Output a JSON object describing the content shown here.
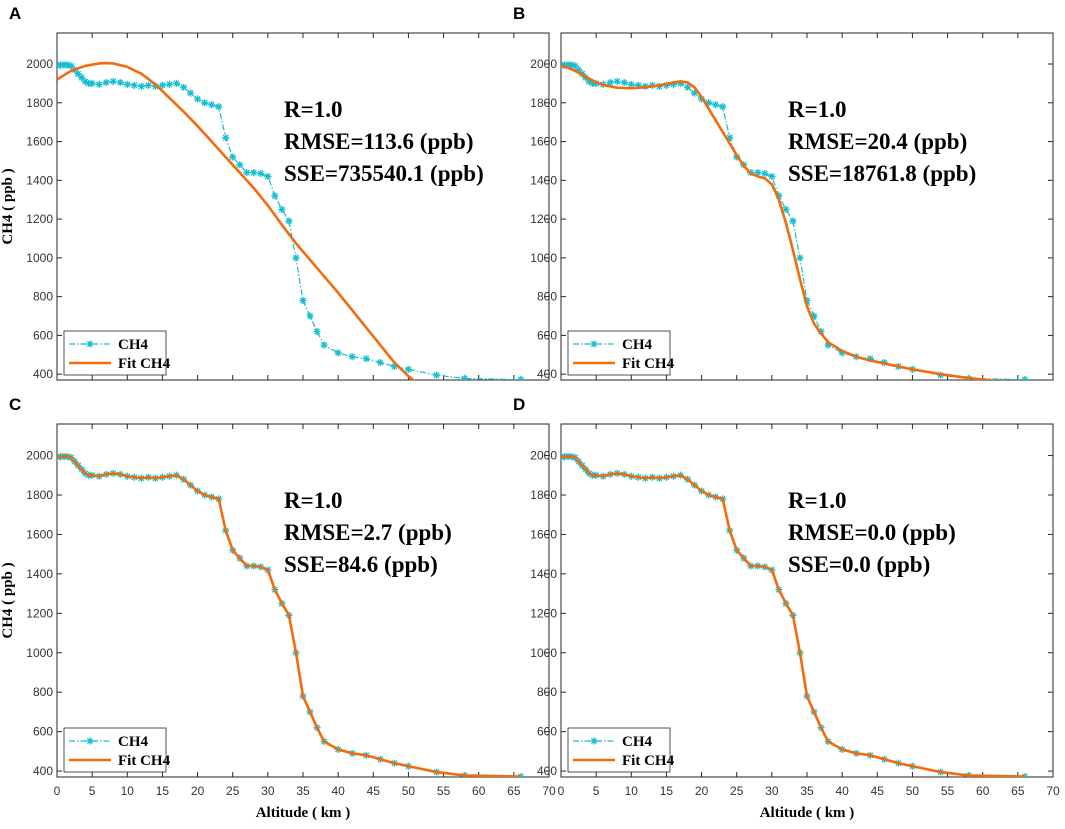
{
  "colors": {
    "ch4": "#17becf",
    "fit": "#f26b0d",
    "axis": "#262626"
  },
  "chart_data": [
    {
      "type": "line",
      "panel_label": "A",
      "xlim": [
        0,
        70
      ],
      "ylim": [
        370,
        2160
      ],
      "xticks": [
        0,
        5,
        10,
        15,
        20,
        25,
        30,
        35,
        40,
        45,
        50,
        55,
        60,
        65,
        70
      ],
      "yticks": [
        400,
        600,
        800,
        1000,
        1200,
        1400,
        1600,
        1800,
        2000
      ],
      "xlabel": "",
      "ylabel": "CH4 ( ppb )",
      "legend": [
        "CH4",
        "Fit CH4"
      ],
      "legend_position": "bottom-left",
      "annotations": [
        "R=1.0",
        "RMSE=113.6 (ppb)",
        "SSE=735540.1 (ppb)"
      ],
      "series": [
        {
          "name": "CH4",
          "x": [
            0,
            0.5,
            1,
            1.5,
            2,
            2.5,
            3,
            3.5,
            4,
            4.5,
            5,
            6,
            7,
            8,
            9,
            10,
            11,
            12,
            13,
            14,
            15,
            16,
            17,
            18,
            19,
            20,
            21,
            22,
            23,
            24,
            25,
            26,
            27,
            28,
            29,
            30,
            31,
            32,
            33,
            34,
            35,
            36,
            37,
            38,
            40,
            42,
            44,
            46,
            48,
            50,
            54,
            58,
            66
          ],
          "y": [
            1990,
            1995,
            1995,
            1995,
            1990,
            1970,
            1950,
            1930,
            1910,
            1900,
            1900,
            1895,
            1905,
            1910,
            1905,
            1895,
            1890,
            1885,
            1890,
            1885,
            1890,
            1895,
            1900,
            1880,
            1850,
            1820,
            1800,
            1790,
            1780,
            1620,
            1520,
            1480,
            1440,
            1440,
            1435,
            1420,
            1320,
            1250,
            1190,
            1000,
            780,
            700,
            620,
            550,
            510,
            490,
            480,
            460,
            440,
            425,
            395,
            378,
            372
          ]
        },
        {
          "name": "Fit CH4",
          "x": [
            0,
            2,
            4,
            6,
            7,
            8,
            10,
            12,
            14,
            16,
            18,
            20,
            22,
            24,
            26,
            28,
            30,
            32,
            34,
            36,
            38,
            40,
            42,
            44,
            46,
            48,
            50,
            51
          ],
          "y": [
            1920,
            1965,
            1990,
            2003,
            2005,
            2003,
            1985,
            1950,
            1895,
            1825,
            1755,
            1680,
            1600,
            1520,
            1440,
            1360,
            1270,
            1170,
            1075,
            990,
            905,
            820,
            730,
            640,
            550,
            460,
            390,
            360
          ]
        }
      ]
    },
    {
      "type": "line",
      "panel_label": "B",
      "xlim": [
        0,
        70
      ],
      "ylim": [
        370,
        2160
      ],
      "xticks": [
        0,
        5,
        10,
        15,
        20,
        25,
        30,
        35,
        40,
        45,
        50,
        55,
        60,
        65,
        70
      ],
      "yticks": [
        400,
        600,
        800,
        1000,
        1200,
        1400,
        1600,
        1800,
        2000
      ],
      "xlabel": "",
      "ylabel": "",
      "legend": [
        "CH4",
        "Fit CH4"
      ],
      "legend_position": "bottom-left",
      "annotations": [
        "R=1.0",
        "RMSE=20.4 (ppb)",
        "SSE=18761.8 (ppb)"
      ],
      "series": [
        {
          "name": "CH4",
          "x": [
            0,
            0.5,
            1,
            1.5,
            2,
            2.5,
            3,
            3.5,
            4,
            4.5,
            5,
            6,
            7,
            8,
            9,
            10,
            11,
            12,
            13,
            14,
            15,
            16,
            17,
            18,
            19,
            20,
            21,
            22,
            23,
            24,
            25,
            26,
            27,
            28,
            29,
            30,
            31,
            32,
            33,
            34,
            35,
            36,
            37,
            38,
            40,
            42,
            44,
            46,
            48,
            50,
            54,
            58,
            66
          ],
          "y": [
            1990,
            1995,
            1995,
            1995,
            1990,
            1970,
            1950,
            1930,
            1910,
            1900,
            1900,
            1895,
            1905,
            1910,
            1905,
            1895,
            1890,
            1885,
            1890,
            1885,
            1890,
            1895,
            1900,
            1880,
            1850,
            1820,
            1800,
            1790,
            1780,
            1620,
            1520,
            1480,
            1440,
            1440,
            1435,
            1420,
            1320,
            1250,
            1190,
            1000,
            780,
            700,
            620,
            550,
            510,
            490,
            480,
            460,
            440,
            425,
            395,
            378,
            372
          ]
        },
        {
          "name": "Fit CH4",
          "x": [
            0,
            1,
            2,
            3,
            4,
            5,
            6,
            8,
            10,
            12,
            14,
            16,
            17,
            18,
            19,
            20,
            21,
            22,
            23,
            24,
            25,
            26,
            27,
            28,
            29,
            30,
            31,
            32,
            33,
            34,
            35,
            36,
            37,
            38,
            40,
            42,
            44,
            46,
            48,
            50,
            54,
            58,
            62,
            64
          ],
          "y": [
            1990,
            1980,
            1965,
            1945,
            1925,
            1905,
            1892,
            1878,
            1875,
            1880,
            1890,
            1905,
            1910,
            1905,
            1880,
            1830,
            1770,
            1710,
            1650,
            1590,
            1530,
            1475,
            1435,
            1420,
            1410,
            1380,
            1300,
            1180,
            1040,
            890,
            750,
            660,
            610,
            565,
            520,
            490,
            470,
            455,
            440,
            425,
            400,
            380,
            365,
            355
          ]
        }
      ]
    },
    {
      "type": "line",
      "panel_label": "C",
      "xlim": [
        0,
        70
      ],
      "ylim": [
        370,
        2160
      ],
      "xticks": [
        0,
        5,
        10,
        15,
        20,
        25,
        30,
        35,
        40,
        45,
        50,
        55,
        60,
        65,
        70
      ],
      "yticks": [
        400,
        600,
        800,
        1000,
        1200,
        1400,
        1600,
        1800,
        2000
      ],
      "xlabel": "Altitude ( km )",
      "ylabel": "CH4 ( ppb )",
      "legend": [
        "CH4",
        "Fit CH4"
      ],
      "legend_position": "bottom-left",
      "annotations": [
        "R=1.0",
        "RMSE=2.7 (ppb)",
        "SSE=84.6 (ppb)"
      ],
      "series": [
        {
          "name": "CH4",
          "x": [
            0,
            0.5,
            1,
            1.5,
            2,
            2.5,
            3,
            3.5,
            4,
            4.5,
            5,
            6,
            7,
            8,
            9,
            10,
            11,
            12,
            13,
            14,
            15,
            16,
            17,
            18,
            19,
            20,
            21,
            22,
            23,
            24,
            25,
            26,
            27,
            28,
            29,
            30,
            31,
            32,
            33,
            34,
            35,
            36,
            37,
            38,
            40,
            42,
            44,
            46,
            48,
            50,
            54,
            58,
            66
          ],
          "y": [
            1990,
            1995,
            1995,
            1995,
            1990,
            1970,
            1950,
            1930,
            1910,
            1900,
            1900,
            1895,
            1905,
            1910,
            1905,
            1895,
            1890,
            1885,
            1890,
            1885,
            1890,
            1895,
            1900,
            1880,
            1850,
            1820,
            1800,
            1790,
            1780,
            1620,
            1520,
            1480,
            1440,
            1440,
            1435,
            1420,
            1320,
            1250,
            1190,
            1000,
            780,
            700,
            620,
            550,
            510,
            490,
            480,
            460,
            440,
            425,
            395,
            378,
            372
          ]
        },
        {
          "name": "Fit CH4",
          "x": [
            0,
            0.5,
            1,
            1.5,
            2,
            2.5,
            3,
            3.5,
            4,
            4.5,
            5,
            6,
            7,
            8,
            9,
            10,
            11,
            12,
            13,
            14,
            15,
            16,
            17,
            18,
            19,
            20,
            21,
            22,
            23,
            24,
            25,
            26,
            27,
            28,
            29,
            30,
            31,
            32,
            33,
            34,
            35,
            36,
            37,
            38,
            40,
            42,
            44,
            46,
            48,
            50,
            54,
            58,
            66
          ],
          "y": [
            1990,
            1995,
            1995,
            1995,
            1990,
            1970,
            1950,
            1930,
            1910,
            1900,
            1900,
            1895,
            1905,
            1910,
            1905,
            1895,
            1890,
            1885,
            1890,
            1885,
            1890,
            1895,
            1900,
            1880,
            1850,
            1820,
            1800,
            1790,
            1780,
            1620,
            1520,
            1480,
            1440,
            1440,
            1435,
            1420,
            1320,
            1250,
            1190,
            1000,
            780,
            700,
            620,
            550,
            510,
            490,
            480,
            460,
            440,
            425,
            395,
            378,
            372
          ]
        }
      ]
    },
    {
      "type": "line",
      "panel_label": "D",
      "xlim": [
        0,
        70
      ],
      "ylim": [
        370,
        2160
      ],
      "xticks": [
        0,
        5,
        10,
        15,
        20,
        25,
        30,
        35,
        40,
        45,
        50,
        55,
        60,
        65,
        70
      ],
      "yticks": [
        400,
        600,
        800,
        1000,
        1200,
        1400,
        1600,
        1800,
        2000
      ],
      "xlabel": "Altitude ( km )",
      "ylabel": "",
      "legend": [
        "CH4",
        "Fit CH4"
      ],
      "legend_position": "bottom-left",
      "annotations": [
        "R=1.0",
        "RMSE=0.0 (ppb)",
        "SSE=0.0 (ppb)"
      ],
      "series": [
        {
          "name": "CH4",
          "x": [
            0,
            0.5,
            1,
            1.5,
            2,
            2.5,
            3,
            3.5,
            4,
            4.5,
            5,
            6,
            7,
            8,
            9,
            10,
            11,
            12,
            13,
            14,
            15,
            16,
            17,
            18,
            19,
            20,
            21,
            22,
            23,
            24,
            25,
            26,
            27,
            28,
            29,
            30,
            31,
            32,
            33,
            34,
            35,
            36,
            37,
            38,
            40,
            42,
            44,
            46,
            48,
            50,
            54,
            58,
            66
          ],
          "y": [
            1990,
            1995,
            1995,
            1995,
            1990,
            1970,
            1950,
            1930,
            1910,
            1900,
            1900,
            1895,
            1905,
            1910,
            1905,
            1895,
            1890,
            1885,
            1890,
            1885,
            1890,
            1895,
            1900,
            1880,
            1850,
            1820,
            1800,
            1790,
            1780,
            1620,
            1520,
            1480,
            1440,
            1440,
            1435,
            1420,
            1320,
            1250,
            1190,
            1000,
            780,
            700,
            620,
            550,
            510,
            490,
            480,
            460,
            440,
            425,
            395,
            378,
            372
          ]
        },
        {
          "name": "Fit CH4",
          "x": [
            0,
            0.5,
            1,
            1.5,
            2,
            2.5,
            3,
            3.5,
            4,
            4.5,
            5,
            6,
            7,
            8,
            9,
            10,
            11,
            12,
            13,
            14,
            15,
            16,
            17,
            18,
            19,
            20,
            21,
            22,
            23,
            24,
            25,
            26,
            27,
            28,
            29,
            30,
            31,
            32,
            33,
            34,
            35,
            36,
            37,
            38,
            40,
            42,
            44,
            46,
            48,
            50,
            54,
            58,
            66
          ],
          "y": [
            1990,
            1995,
            1995,
            1995,
            1990,
            1970,
            1950,
            1930,
            1910,
            1900,
            1900,
            1895,
            1905,
            1910,
            1905,
            1895,
            1890,
            1885,
            1890,
            1885,
            1890,
            1895,
            1900,
            1880,
            1850,
            1820,
            1800,
            1790,
            1780,
            1620,
            1520,
            1480,
            1440,
            1440,
            1435,
            1420,
            1320,
            1250,
            1190,
            1000,
            780,
            700,
            620,
            550,
            510,
            490,
            480,
            460,
            440,
            425,
            395,
            378,
            372
          ]
        }
      ]
    }
  ]
}
